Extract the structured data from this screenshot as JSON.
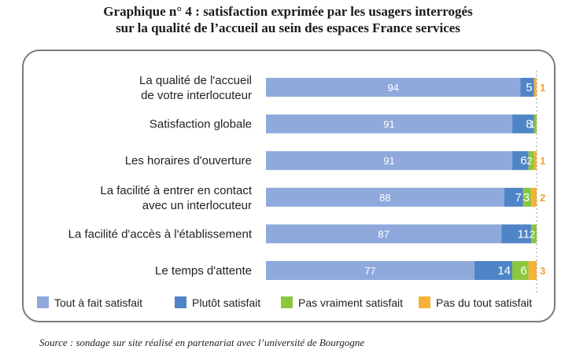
{
  "title_line1": "Graphique n° 4 : satisfaction exprimée par les usagers interrogés",
  "title_line2": "sur la qualité de l’accueil au sein des espaces France services",
  "source": "Source : sondage sur site réalisé en partenariat avec l’université de Bourgogne",
  "chart_data": {
    "type": "bar",
    "orientation": "horizontal",
    "stacked": true,
    "categories": [
      [
        "La qualité de l'accueil",
        "de votre interlocuteur"
      ],
      [
        "Satisfaction globale"
      ],
      [
        "Les horaires d'ouverture"
      ],
      [
        "La facilité à entrer en contact",
        "avec un interlocuteur"
      ],
      [
        "La facilité d'accès à l'établissement"
      ],
      [
        "Le temps d'attente"
      ]
    ],
    "series": [
      {
        "name": "Tout à fait satisfait",
        "color": "#8fa9dc",
        "values": [
          94,
          91,
          91,
          88,
          87,
          77
        ]
      },
      {
        "name": "Plutôt satisfait",
        "color": "#4f85c6",
        "values": [
          5,
          8,
          6,
          7,
          11,
          14
        ]
      },
      {
        "name": "Pas vraiment satisfait",
        "color": "#8cc63f",
        "values": [
          0,
          1,
          2,
          3,
          2,
          6
        ]
      },
      {
        "name": "Pas du tout satisfait",
        "color": "#f5b335",
        "values": [
          1,
          0,
          1,
          2,
          0,
          3
        ]
      }
    ],
    "xlim": [
      0,
      100
    ],
    "legend_position": "bottom",
    "grid": false
  }
}
